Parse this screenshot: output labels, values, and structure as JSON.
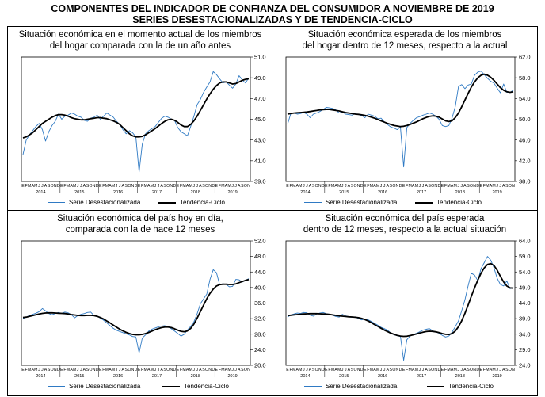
{
  "page": {
    "title_line1": "COMPONENTES DEL INDICADOR DE CONFIANZA DEL CONSUMIDOR A NOVIEMBRE DE 2019",
    "title_line2": "SERIES DESESTACIONALIZADAS Y DE TENDENCIA-CICLO"
  },
  "colors": {
    "seasonal": "#2f7ac4",
    "trend": "#000000",
    "axis": "#000000"
  },
  "legend": {
    "seasonal": "Serie Desestacionalizada",
    "trend": "Tendencia-Ciclo"
  },
  "chart_data": [
    {
      "type": "line",
      "title": "Situación económica en el momento actual de los miembros del hogar comparada con la de un año antes",
      "title_lines": [
        "Situación económica en el momento actual de los miembros",
        "del hogar comparada con la de un año antes"
      ],
      "ylim": [
        39.0,
        51.0
      ],
      "yticks": [
        "51.0",
        "49.0",
        "47.0",
        "45.0",
        "43.0",
        "41.0",
        "39.0"
      ],
      "months": "EFMAMJJASOND",
      "years": [
        "2014",
        "2015",
        "2016",
        "2017",
        "2018",
        "2019"
      ],
      "n": 71,
      "series": [
        {
          "name": "Serie Desestacionalizada",
          "values": [
            41.6,
            43.0,
            43.5,
            43.9,
            44.3,
            44.6,
            44.0,
            42.9,
            43.8,
            44.4,
            44.8,
            45.5,
            45.0,
            45.3,
            45.4,
            45.6,
            45.5,
            45.3,
            45.2,
            44.9,
            44.8,
            45.1,
            45.2,
            45.4,
            45.0,
            45.3,
            45.6,
            45.4,
            45.2,
            44.8,
            44.5,
            44.0,
            43.6,
            43.9,
            43.7,
            43.3,
            39.9,
            42.6,
            43.6,
            43.9,
            44.1,
            44.3,
            44.7,
            45.1,
            45.3,
            45.2,
            45.0,
            44.9,
            44.2,
            43.8,
            43.6,
            43.4,
            44.3,
            45.3,
            46.4,
            46.9,
            47.6,
            48.1,
            48.6,
            49.6,
            49.3,
            48.9,
            48.5,
            48.6,
            48.3,
            48.0,
            48.4,
            49.2,
            48.8,
            48.5,
            49.0
          ]
        },
        {
          "name": "Tendencia-Ciclo",
          "values": [
            43.2,
            43.3,
            43.5,
            43.7,
            44.0,
            44.3,
            44.6,
            44.8,
            45.0,
            45.2,
            45.35,
            45.45,
            45.45,
            45.4,
            45.3,
            45.15,
            45.05,
            45.0,
            44.95,
            44.95,
            45.0,
            45.05,
            45.1,
            45.15,
            45.15,
            45.1,
            45.05,
            44.95,
            44.85,
            44.7,
            44.5,
            44.2,
            43.9,
            43.6,
            43.4,
            43.3,
            43.3,
            43.35,
            43.5,
            43.7,
            43.9,
            44.1,
            44.35,
            44.6,
            44.8,
            44.95,
            45.0,
            44.9,
            44.7,
            44.45,
            44.3,
            44.3,
            44.5,
            44.85,
            45.3,
            45.85,
            46.4,
            46.95,
            47.45,
            47.9,
            48.25,
            48.5,
            48.6,
            48.6,
            48.5,
            48.4,
            48.45,
            48.6,
            48.75,
            48.85,
            48.9
          ]
        }
      ]
    },
    {
      "type": "line",
      "title": "Situación económica esperada de los miembros del hogar dentro de 12 meses, respecto a la actual",
      "title_lines": [
        "Situación económica esperada de los miembros",
        "del hogar dentro de 12 meses, respecto a la actual"
      ],
      "ylim": [
        38.0,
        62.0
      ],
      "yticks": [
        "62.0",
        "58.0",
        "54.0",
        "50.0",
        "46.0",
        "42.0",
        "38.0"
      ],
      "months": "EFMAMJJASOND",
      "years": [
        "2014",
        "2015",
        "2016",
        "2017",
        "2018",
        "2019"
      ],
      "n": 71,
      "series": [
        {
          "name": "Serie Desestacionalizada",
          "values": [
            49.0,
            51.1,
            51.2,
            51.0,
            51.1,
            51.3,
            51.0,
            50.3,
            51.0,
            51.2,
            51.5,
            51.9,
            52.3,
            52.2,
            52.1,
            51.8,
            51.2,
            51.4,
            51.0,
            50.9,
            50.8,
            51.1,
            50.9,
            50.7,
            50.3,
            51.0,
            50.8,
            50.6,
            50.1,
            50.2,
            49.5,
            49.0,
            48.5,
            48.3,
            48.0,
            48.5,
            40.8,
            48.4,
            49.2,
            49.8,
            50.3,
            50.5,
            50.8,
            51.0,
            51.2,
            51.0,
            50.6,
            50.0,
            48.8,
            48.6,
            48.8,
            50.2,
            52.4,
            56.3,
            56.7,
            55.9,
            56.6,
            56.8,
            58.5,
            59.1,
            59.3,
            58.6,
            57.9,
            57.3,
            57.0,
            56.0,
            55.1,
            56.8,
            55.2,
            55.2,
            55.6
          ]
        },
        {
          "name": "Tendencia-Ciclo",
          "values": [
            51.0,
            51.1,
            51.2,
            51.25,
            51.3,
            51.35,
            51.4,
            51.5,
            51.6,
            51.7,
            51.8,
            51.85,
            51.9,
            51.9,
            51.8,
            51.7,
            51.6,
            51.45,
            51.3,
            51.2,
            51.1,
            51.0,
            50.95,
            50.85,
            50.75,
            50.6,
            50.4,
            50.2,
            49.95,
            49.7,
            49.45,
            49.2,
            49.0,
            48.8,
            48.7,
            48.6,
            48.65,
            48.8,
            49.0,
            49.25,
            49.5,
            49.8,
            50.1,
            50.35,
            50.55,
            50.65,
            50.6,
            50.4,
            50.05,
            49.7,
            49.55,
            49.7,
            50.3,
            51.2,
            52.4,
            53.7,
            55.0,
            56.2,
            57.2,
            58.0,
            58.5,
            58.7,
            58.5,
            58.1,
            57.5,
            56.8,
            56.1,
            55.6,
            55.3,
            55.2,
            55.3
          ]
        }
      ]
    },
    {
      "type": "line",
      "title": "Situación económica del país hoy en día, comparada con la de hace 12 meses",
      "title_lines": [
        "Situación económica del país hoy en día,",
        "comparada con la de hace 12 meses"
      ],
      "ylim": [
        20.0,
        52.0
      ],
      "yticks": [
        "52.0",
        "48.0",
        "44.0",
        "40.0",
        "36.0",
        "32.0",
        "28.0",
        "24.0",
        "20.0"
      ],
      "months": "EFMAMJJASOND",
      "years": [
        "2014",
        "2015",
        "2016",
        "2017",
        "2018",
        "2019"
      ],
      "n": 71,
      "series": [
        {
          "name": "Serie Desestacionalizada",
          "values": [
            32.0,
            32.4,
            32.8,
            33.1,
            33.4,
            33.8,
            34.6,
            34.0,
            33.3,
            33.0,
            33.3,
            33.6,
            33.4,
            33.7,
            33.5,
            33.0,
            32.2,
            32.8,
            33.1,
            33.3,
            33.6,
            33.7,
            32.8,
            32.7,
            32.1,
            31.6,
            30.9,
            30.2,
            29.5,
            29.0,
            28.7,
            28.4,
            28.1,
            27.8,
            27.4,
            27.3,
            23.2,
            27.0,
            27.8,
            28.8,
            29.3,
            29.6,
            29.9,
            30.1,
            30.2,
            29.9,
            29.4,
            28.8,
            28.2,
            27.5,
            28.0,
            29.1,
            30.0,
            31.2,
            33.2,
            35.8,
            37.1,
            38.3,
            42.1,
            44.6,
            43.8,
            40.7,
            41.0,
            40.8,
            40.2,
            40.3,
            42.1,
            42.0,
            41.4,
            41.9,
            42.3
          ]
        },
        {
          "name": "Tendencia-Ciclo",
          "values": [
            32.3,
            32.4,
            32.6,
            32.8,
            33.0,
            33.2,
            33.35,
            33.45,
            33.5,
            33.5,
            33.45,
            33.4,
            33.35,
            33.3,
            33.2,
            33.05,
            32.95,
            32.85,
            32.8,
            32.8,
            32.85,
            32.85,
            32.8,
            32.6,
            32.3,
            31.9,
            31.4,
            30.9,
            30.35,
            29.8,
            29.3,
            28.85,
            28.45,
            28.15,
            27.95,
            27.85,
            27.85,
            27.95,
            28.15,
            28.45,
            28.8,
            29.15,
            29.45,
            29.7,
            29.85,
            29.85,
            29.7,
            29.4,
            29.05,
            28.75,
            28.65,
            28.85,
            29.5,
            30.6,
            32.1,
            33.8,
            35.5,
            37.1,
            38.5,
            39.6,
            40.4,
            40.75,
            40.85,
            40.85,
            40.8,
            40.8,
            40.95,
            41.25,
            41.55,
            41.85,
            42.05
          ]
        }
      ]
    },
    {
      "type": "line",
      "title": "Situación económica del país esperada dentro de 12 meses, respecto a la actual situación",
      "title_lines": [
        "Situación económica del país esperada",
        "dentro de 12 meses, respecto a la actual situación"
      ],
      "ylim": [
        24.0,
        64.0
      ],
      "yticks": [
        "64.0",
        "59.0",
        "54.0",
        "49.0",
        "44.0",
        "39.0",
        "34.0",
        "29.0",
        "24.0"
      ],
      "months": "EFMAMJJASOND",
      "years": [
        "2014",
        "2015",
        "2016",
        "2017",
        "2018",
        "2019"
      ],
      "n": 71,
      "series": [
        {
          "name": "Serie Desestacionalizada",
          "values": [
            39.5,
            40.2,
            40.5,
            40.8,
            40.7,
            41.0,
            40.9,
            40.1,
            39.8,
            40.5,
            40.8,
            41.0,
            40.6,
            40.4,
            40.1,
            39.7,
            39.5,
            40.4,
            39.9,
            39.6,
            39.4,
            39.6,
            39.0,
            38.6,
            38.9,
            38.6,
            38.1,
            37.5,
            36.9,
            36.2,
            35.8,
            35.3,
            34.4,
            33.8,
            33.5,
            33.3,
            25.6,
            32.2,
            33.4,
            33.9,
            34.3,
            34.8,
            35.3,
            35.6,
            35.8,
            35.1,
            34.7,
            34.3,
            33.6,
            33.1,
            33.4,
            34.6,
            36.4,
            38.3,
            41.5,
            45.0,
            49.6,
            53.6,
            53.0,
            51.2,
            55.1,
            57.0,
            59.0,
            57.8,
            55.4,
            52.0,
            50.0,
            49.5,
            51.1,
            48.6,
            49.1
          ]
        },
        {
          "name": "Tendencia-Ciclo",
          "values": [
            40.0,
            40.1,
            40.2,
            40.3,
            40.4,
            40.5,
            40.55,
            40.6,
            40.6,
            40.6,
            40.55,
            40.5,
            40.45,
            40.35,
            40.2,
            40.05,
            39.9,
            39.8,
            39.7,
            39.6,
            39.55,
            39.45,
            39.3,
            39.05,
            38.7,
            38.25,
            37.7,
            37.1,
            36.5,
            35.9,
            35.35,
            34.85,
            34.35,
            33.95,
            33.6,
            33.4,
            33.3,
            33.35,
            33.55,
            33.8,
            34.1,
            34.4,
            34.65,
            34.85,
            34.95,
            34.9,
            34.75,
            34.5,
            34.2,
            33.95,
            33.9,
            34.2,
            35.0,
            36.4,
            38.3,
            40.7,
            43.4,
            46.2,
            48.9,
            51.4,
            53.6,
            55.3,
            56.4,
            56.7,
            56.1,
            54.6,
            52.6,
            50.8,
            49.5,
            48.9,
            48.8
          ]
        }
      ]
    }
  ]
}
